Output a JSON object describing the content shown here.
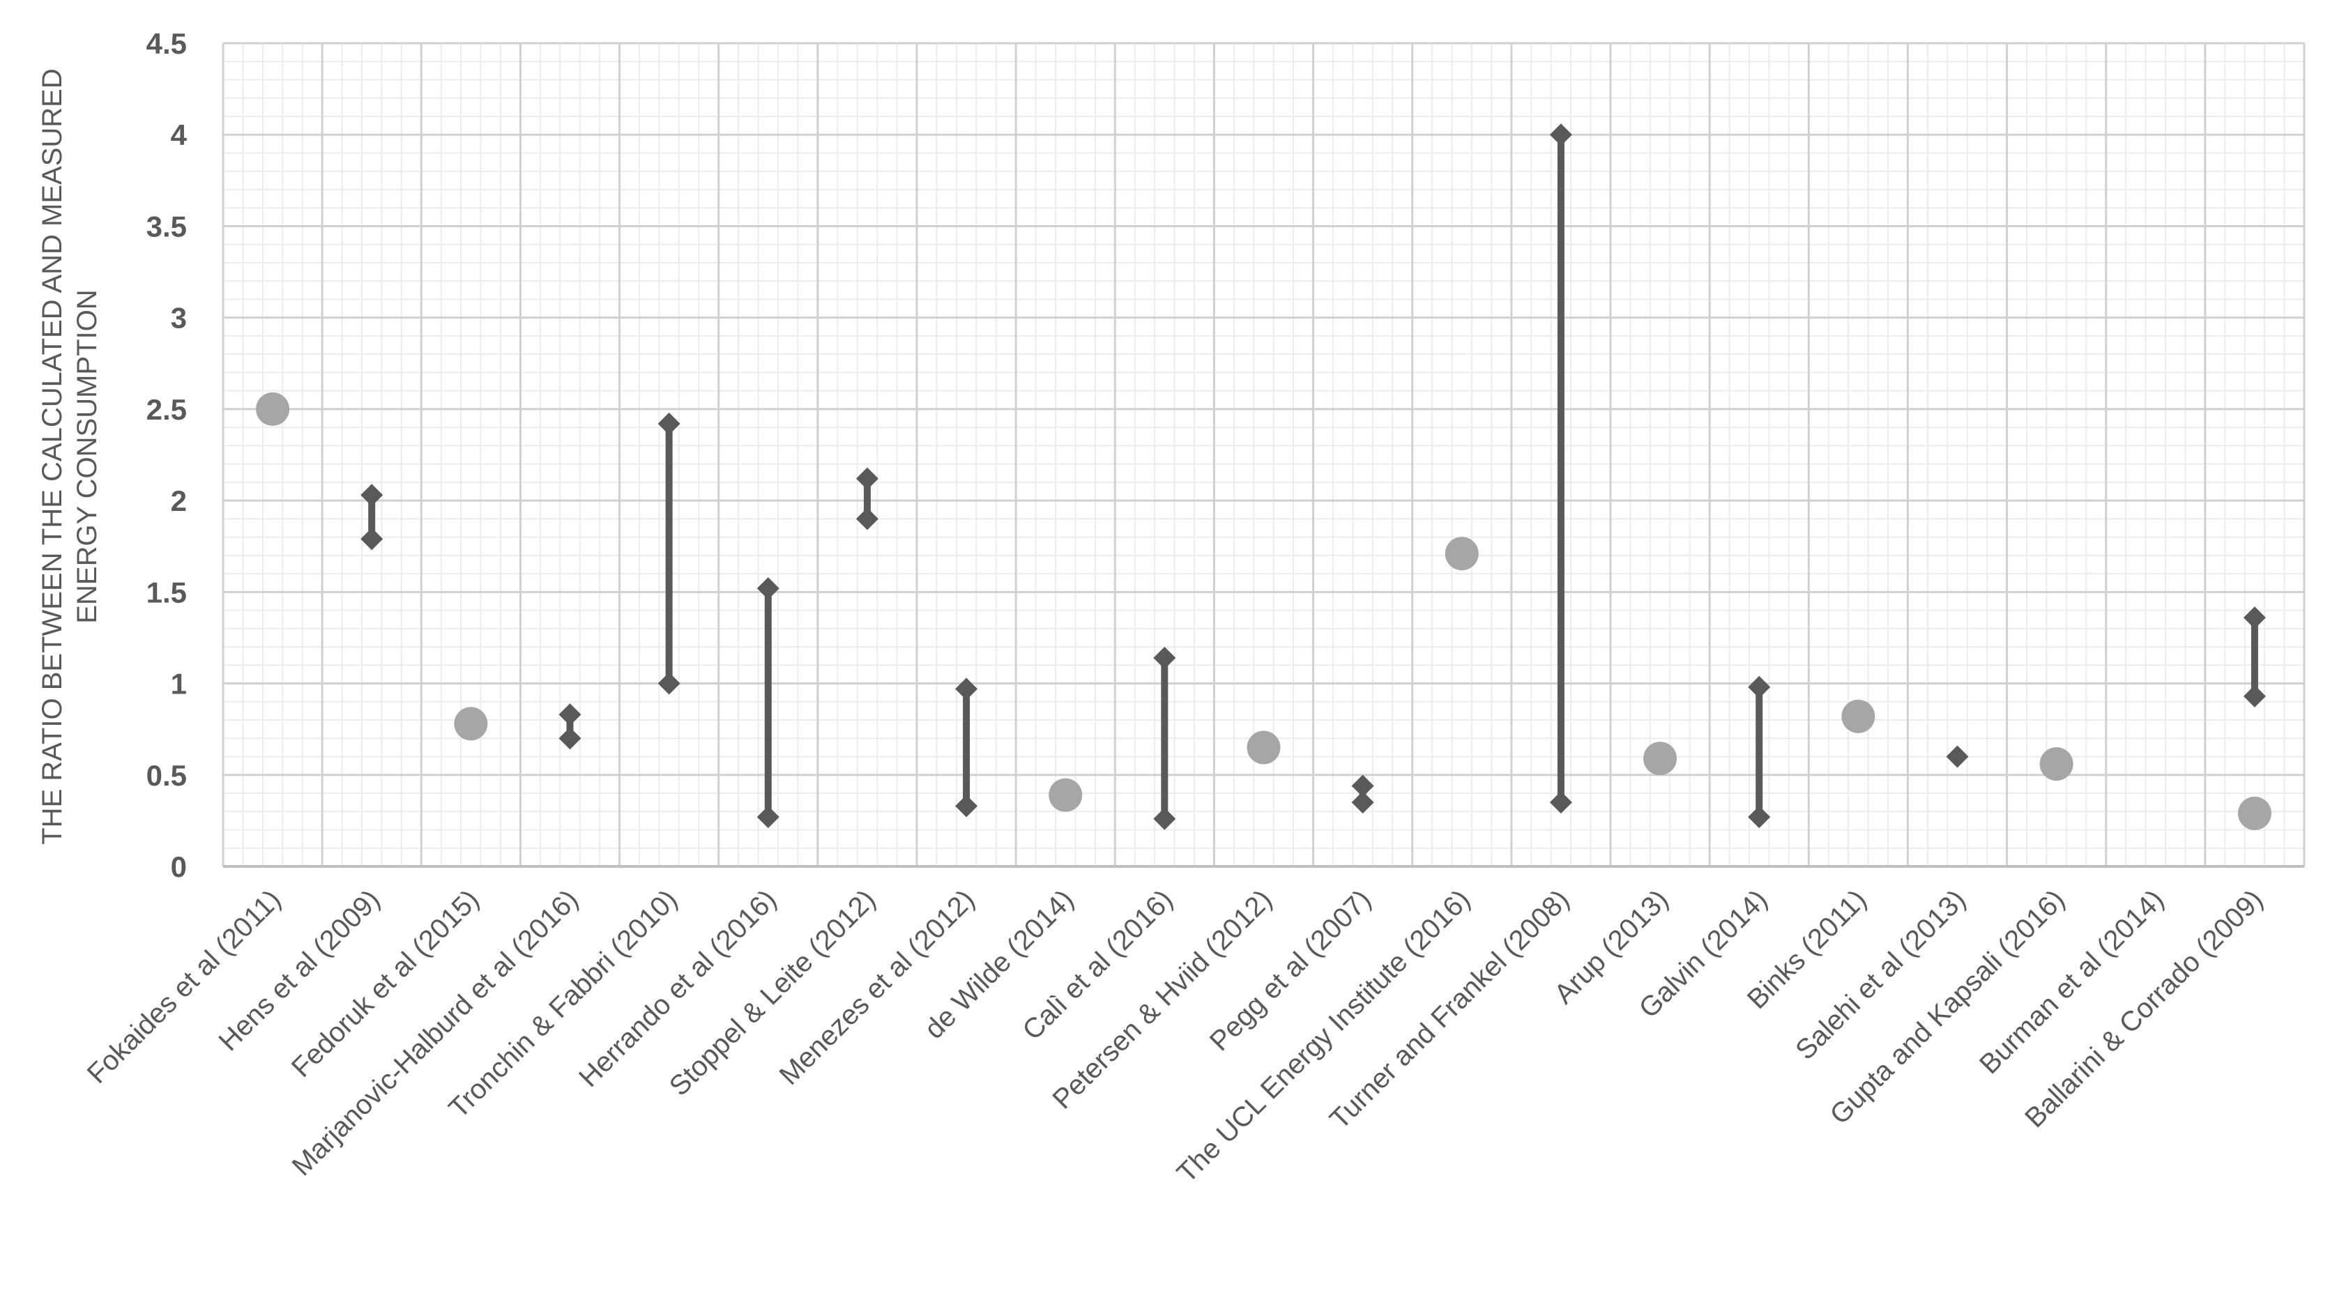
{
  "chart_data": {
    "type": "scatter",
    "ylabel_lines": [
      "THE RATIO BETWEEN THE CALCULATED AND MEASURED",
      "ENERGY CONSUMPTION"
    ],
    "ylim": [
      0,
      4.5
    ],
    "yticks": [
      0,
      0.5,
      1,
      1.5,
      2,
      2.5,
      3,
      3.5,
      4,
      4.5
    ],
    "ytick_labels": [
      "0",
      "0.5",
      "1",
      "1.5",
      "2",
      "2.5",
      "3",
      "3.5",
      "4",
      "4.5"
    ],
    "grid": true,
    "legend": "none",
    "categories": [
      "Fokaides et al (2011)",
      "Hens et al (2009)",
      "Fedoruk et al (2015)",
      "Marjanovic-Halburd et al (2016)",
      "Tronchin & Fabbri (2010)",
      "Herrando et al (2016)",
      "Stoppel & Leite (2012)",
      "Menezes et al (2012)",
      "de Wilde (2014)",
      "Calì et al (2016)",
      "Petersen & Hviid (2012)",
      "Pegg et al (2007)",
      "The UCL Energy Institute (2016)",
      "Turner and Frankel (2008)",
      "Arup (2013)",
      "Galvin (2014)",
      "Binks (2011)",
      "Salehi et al (2013)",
      "Gupta and Kapsali (2016)",
      "Burman et al (2014)",
      "Ballarini & Corrado (2009)"
    ],
    "series": [
      {
        "kind": "point",
        "color": "#a6a6a6",
        "marker": "circle",
        "points": [
          {
            "category": 0,
            "value": 2.5
          },
          {
            "category": 2,
            "value": 0.78
          },
          {
            "category": 8,
            "value": 0.39
          },
          {
            "category": 10,
            "value": 0.65
          },
          {
            "category": 12,
            "value": 1.71
          },
          {
            "category": 14,
            "value": 0.59
          },
          {
            "category": 16,
            "value": 0.82
          },
          {
            "category": 18,
            "value": 0.56
          },
          {
            "category": 20,
            "value": 0.29
          }
        ]
      },
      {
        "kind": "range",
        "color": "#595959",
        "marker": "diamond",
        "ranges": [
          {
            "category": 1,
            "low": 1.79,
            "high": 2.03
          },
          {
            "category": 3,
            "low": 0.7,
            "high": 0.83
          },
          {
            "category": 4,
            "low": 1.0,
            "high": 2.42
          },
          {
            "category": 5,
            "low": 0.27,
            "high": 1.52
          },
          {
            "category": 6,
            "low": 1.9,
            "high": 2.12
          },
          {
            "category": 7,
            "low": 0.33,
            "high": 0.97
          },
          {
            "category": 9,
            "low": 0.26,
            "high": 1.14
          },
          {
            "category": 11,
            "low": 0.35,
            "high": 0.44
          },
          {
            "category": 13,
            "low": 0.35,
            "high": 4.0
          },
          {
            "category": 15,
            "low": 0.27,
            "high": 0.98
          },
          {
            "category": 17,
            "low": 0.6,
            "high": 0.6
          },
          {
            "category": 20,
            "low": 0.93,
            "high": 1.36
          }
        ]
      }
    ]
  }
}
